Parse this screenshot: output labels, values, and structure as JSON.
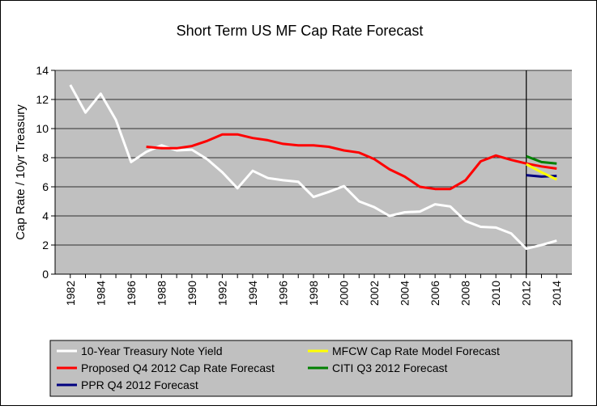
{
  "chart_data": {
    "type": "line",
    "title": "Short Term US MF Cap Rate Forecast",
    "y_label": "Cap Rate / 10yr Treasury",
    "x": [
      1982,
      1983,
      1984,
      1985,
      1986,
      1987,
      1988,
      1989,
      1990,
      1991,
      1992,
      1993,
      1994,
      1995,
      1996,
      1997,
      1998,
      1999,
      2000,
      2001,
      2002,
      2003,
      2004,
      2005,
      2006,
      2007,
      2008,
      2009,
      2010,
      2011,
      2012,
      2013,
      2014
    ],
    "xlim": [
      1981,
      2015
    ],
    "xticks": [
      1982,
      1984,
      1986,
      1988,
      1990,
      1992,
      1994,
      1996,
      1998,
      2000,
      2002,
      2004,
      2006,
      2008,
      2010,
      2012,
      2014
    ],
    "ylim": [
      0,
      14
    ],
    "yticks": [
      0,
      2,
      4,
      6,
      8,
      10,
      12,
      14
    ],
    "grid": true,
    "forecast_line_x": 2012,
    "series": [
      {
        "name": "10-Year Treasury Note Yield",
        "color": "#ffffff",
        "values": [
          13.0,
          11.1,
          12.4,
          10.6,
          7.7,
          8.4,
          8.85,
          8.5,
          8.55,
          7.9,
          7.0,
          5.9,
          7.1,
          6.6,
          6.45,
          6.35,
          5.3,
          5.65,
          6.05,
          5.0,
          4.6,
          4.0,
          4.25,
          4.3,
          4.8,
          4.65,
          3.65,
          3.25,
          3.2,
          2.8,
          1.75,
          2.0,
          2.3
        ]
      },
      {
        "name": "MFCW Cap Rate Model Forecast",
        "color": "#ffff00",
        "values": [
          null,
          null,
          null,
          null,
          null,
          null,
          null,
          null,
          null,
          null,
          null,
          null,
          null,
          null,
          null,
          null,
          null,
          null,
          null,
          null,
          null,
          null,
          null,
          null,
          null,
          null,
          null,
          null,
          null,
          null,
          7.55,
          7.0,
          6.5
        ]
      },
      {
        "name": "Proposed Q4 2012 Cap Rate Forecast",
        "color": "#ff0000",
        "values": [
          null,
          null,
          null,
          null,
          null,
          8.75,
          8.65,
          8.65,
          8.8,
          9.15,
          9.6,
          9.6,
          9.35,
          9.2,
          8.95,
          8.85,
          8.85,
          8.75,
          8.5,
          8.35,
          7.9,
          7.2,
          6.7,
          6.0,
          5.85,
          5.85,
          6.45,
          7.75,
          8.15,
          7.85,
          7.6,
          7.4,
          7.25
        ]
      },
      {
        "name": "CITI Q3 2012 Forecast",
        "color": "#008000",
        "values": [
          null,
          null,
          null,
          null,
          null,
          null,
          null,
          null,
          null,
          null,
          null,
          null,
          null,
          null,
          null,
          null,
          null,
          null,
          null,
          null,
          null,
          null,
          null,
          null,
          null,
          null,
          null,
          null,
          null,
          null,
          8.1,
          7.7,
          7.6
        ]
      },
      {
        "name": "PPR Q4 2012 Forecast",
        "color": "#000080",
        "values": [
          null,
          null,
          null,
          null,
          null,
          null,
          null,
          null,
          null,
          null,
          null,
          null,
          null,
          null,
          null,
          null,
          null,
          null,
          null,
          null,
          null,
          null,
          null,
          null,
          null,
          null,
          null,
          null,
          null,
          null,
          6.8,
          6.7,
          6.75
        ]
      }
    ]
  }
}
